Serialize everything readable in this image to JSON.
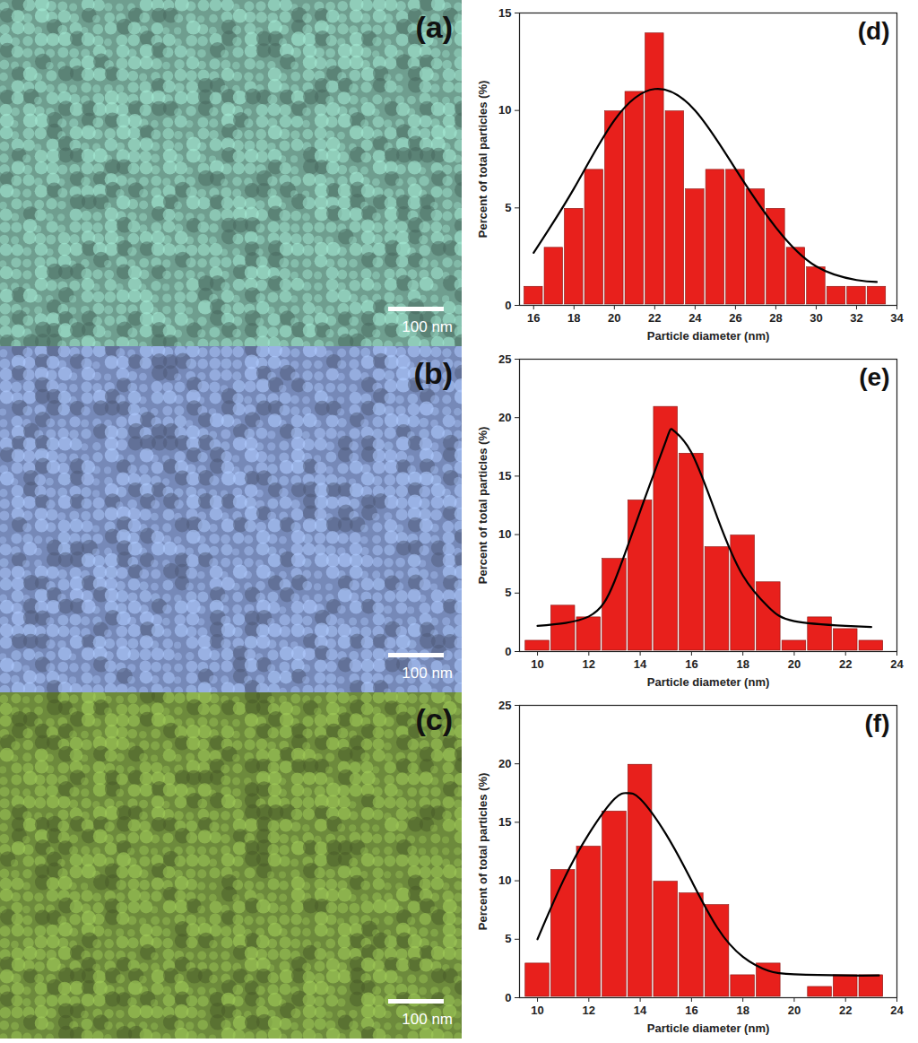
{
  "images": [
    {
      "panel": "(a)",
      "scale_bar": "100 nm",
      "color": "#6f9e8f"
    },
    {
      "panel": "(b)",
      "scale_bar": "100 nm",
      "color": "#7689b8"
    },
    {
      "panel": "(c)",
      "scale_bar": "100 nm",
      "color": "#6d8a3c"
    }
  ],
  "chart_data": [
    {
      "type": "histogram",
      "panel": "(d)",
      "x_label": "Particle diameter (nm)",
      "y_label": "Percent of total particles (%)",
      "bins": [
        15.5,
        16.5,
        17.5,
        18.5,
        19.5,
        20.5,
        21.5,
        22.5,
        23.5,
        24.5,
        25.5,
        26.5,
        27.5,
        28.5,
        29.5,
        30.5,
        31.5,
        32.5,
        33.5
      ],
      "counts": [
        1,
        3,
        5,
        7,
        10,
        11,
        14,
        10,
        6,
        7,
        7,
        6,
        5,
        3,
        2,
        1,
        1,
        1
      ],
      "color": "#e8201c",
      "fit": {
        "type": "line",
        "color": "#000000",
        "x": [
          16,
          18,
          20,
          22,
          24,
          26,
          28,
          30,
          32,
          33
        ],
        "values": [
          2.7,
          6,
          9.5,
          11.1,
          10,
          7,
          4,
          2,
          1.3,
          1.2
        ]
      },
      "xlim": [
        15.3,
        34
      ],
      "xticks": [
        16,
        18,
        20,
        22,
        24,
        26,
        28,
        30,
        32,
        34
      ],
      "ylim": [
        0,
        15
      ],
      "yticks": [
        0,
        5,
        10,
        15
      ]
    },
    {
      "type": "histogram",
      "panel": "(e)",
      "x_label": "Particle diameter (nm)",
      "y_label": "Percent of total particles (%)",
      "bins": [
        9.5,
        10.5,
        11.5,
        12.5,
        13.5,
        14.5,
        15.5,
        16.5,
        17.5,
        18.5,
        19.5,
        20.5,
        21.5,
        22.5,
        23.5
      ],
      "counts": [
        1,
        4,
        3,
        8,
        13,
        21,
        17,
        9,
        10,
        6,
        1,
        3,
        2,
        1
      ],
      "color": "#e8201c",
      "fit": {
        "type": "line",
        "color": "#000000",
        "x": [
          10,
          12,
          13,
          14,
          15,
          15.3,
          16,
          17,
          18,
          19,
          20,
          22,
          23
        ],
        "values": [
          2.2,
          3,
          6,
          12,
          18,
          18.9,
          17,
          11.5,
          6.5,
          3.8,
          2.6,
          2.2,
          2.1
        ]
      },
      "xlim": [
        9.3,
        24
      ],
      "xticks": [
        10,
        12,
        14,
        16,
        18,
        20,
        22,
        24
      ],
      "ylim": [
        0,
        25
      ],
      "yticks": [
        0,
        5,
        10,
        15,
        20,
        25
      ]
    },
    {
      "type": "histogram",
      "panel": "(f)",
      "x_label": "Particle diameter (nm)",
      "y_label": "Percent of total particles (%)",
      "bins": [
        9.5,
        10.5,
        11.5,
        12.5,
        13.5,
        14.5,
        15.5,
        16.5,
        17.5,
        18.5,
        19.5,
        20.5,
        21.5,
        22.5,
        23.5
      ],
      "counts": [
        3,
        11,
        13,
        16,
        20,
        10,
        9,
        8,
        2,
        3,
        0,
        1,
        2,
        2
      ],
      "color": "#e8201c",
      "fit": {
        "type": "line",
        "color": "#000000",
        "x": [
          10,
          11,
          12,
          13,
          13.5,
          14,
          15,
          16,
          17,
          18,
          19,
          20,
          22,
          23.3
        ],
        "values": [
          5,
          10,
          14,
          17,
          17.5,
          17,
          14,
          10,
          6,
          3.5,
          2.3,
          2,
          1.9,
          1.9
        ]
      },
      "xlim": [
        9.3,
        24
      ],
      "xticks": [
        10,
        12,
        14,
        16,
        18,
        20,
        22,
        24
      ],
      "ylim": [
        0,
        25
      ],
      "yticks": [
        0,
        5,
        10,
        15,
        20,
        25
      ]
    }
  ]
}
